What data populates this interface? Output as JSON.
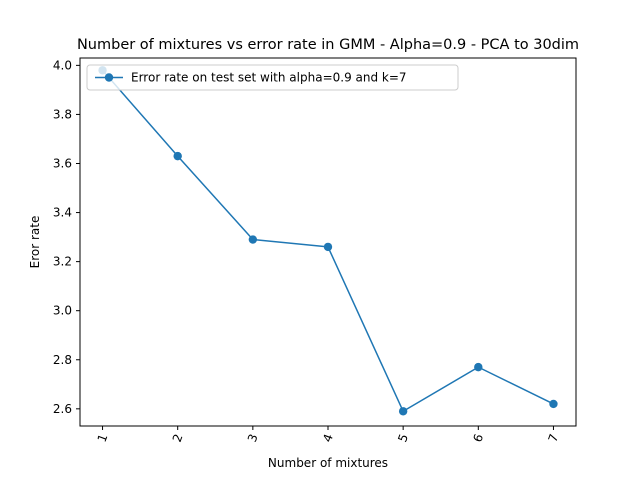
{
  "chart_data": {
    "type": "line",
    "title": "Number of mixtures vs error rate in GMM - Alpha=0.9 - PCA to 30dim",
    "xlabel": "Number of mixtures",
    "ylabel": "Eror rate",
    "x": [
      1,
      2,
      3,
      4,
      5,
      6,
      7
    ],
    "x_tick_labels": [
      "1",
      "2",
      "3",
      "4",
      "5",
      "6",
      "7"
    ],
    "x_tick_rotation_deg": 70,
    "y_ticks": [
      2.6,
      2.8,
      3.0,
      3.2,
      3.4,
      3.6,
      3.8,
      4.0
    ],
    "y_tick_labels": [
      "2.6",
      "2.8",
      "3.0",
      "3.2",
      "3.4",
      "3.6",
      "3.8",
      "4.0"
    ],
    "xlim": [
      0.7,
      7.3
    ],
    "ylim": [
      2.53,
      4.03
    ],
    "grid": false,
    "legend_position": "upper left",
    "series": [
      {
        "name": "Error rate on test set with alpha=0.9 and k=7",
        "values": [
          3.98,
          3.63,
          3.29,
          3.26,
          2.59,
          2.77,
          2.62
        ],
        "color": "#1f77b4",
        "marker": "circle"
      }
    ]
  }
}
